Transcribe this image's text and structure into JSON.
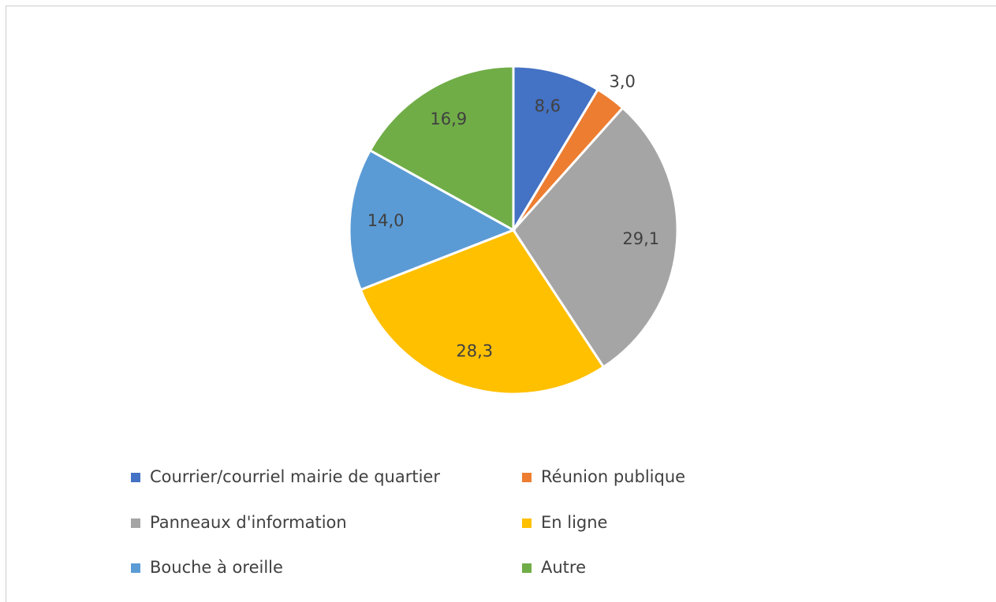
{
  "chart_data": {
    "type": "pie",
    "categories": [
      "Courrier/courriel mairie de quartier",
      "Réunion publique",
      "Panneaux d'information",
      "En ligne",
      "Bouche à oreille",
      "Autre"
    ],
    "values": [
      8.6,
      3.0,
      29.1,
      28.3,
      14.0,
      16.9
    ],
    "value_labels": [
      "8,6",
      "3,0",
      "29,1",
      "28,3",
      "14,0",
      "16,9"
    ],
    "colors": [
      "#4472c4",
      "#ed7d31",
      "#a5a5a5",
      "#ffc000",
      "#5b9bd5",
      "#70ad47"
    ],
    "legend": "bottom"
  }
}
